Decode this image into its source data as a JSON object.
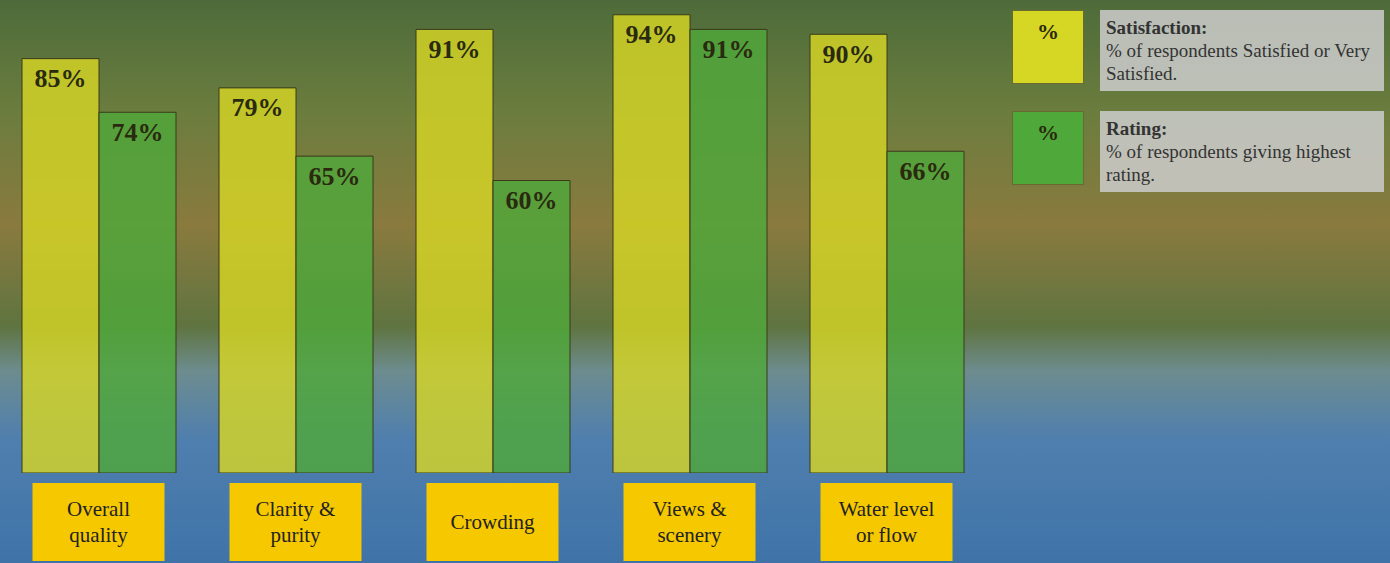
{
  "chart_data": {
    "type": "bar",
    "categories": [
      "Overall quality",
      "Clarity & purity",
      "Crowding",
      "Views & scenery",
      "Water level or flow"
    ],
    "series": [
      {
        "name": "Satisfaction:",
        "description": "% of respondents Satisfied or Very Satisfied.",
        "color": "#d6d624",
        "values": [
          85,
          79,
          91,
          94,
          90
        ],
        "value_labels": [
          "85%",
          "79%",
          "91%",
          "94%",
          "90%"
        ]
      },
      {
        "name": "Rating:",
        "description": "% of respondents giving highest rating.",
        "color": "#4fa83a",
        "values": [
          74,
          65,
          60,
          91,
          66
        ],
        "value_labels": [
          "74%",
          "65%",
          "60%",
          "91%",
          "66%"
        ]
      }
    ],
    "legend_marker": "%",
    "ylim": [
      0,
      96
    ],
    "tick_labels": false,
    "data_labels": true,
    "grid": false,
    "legend": "upper-right"
  }
}
